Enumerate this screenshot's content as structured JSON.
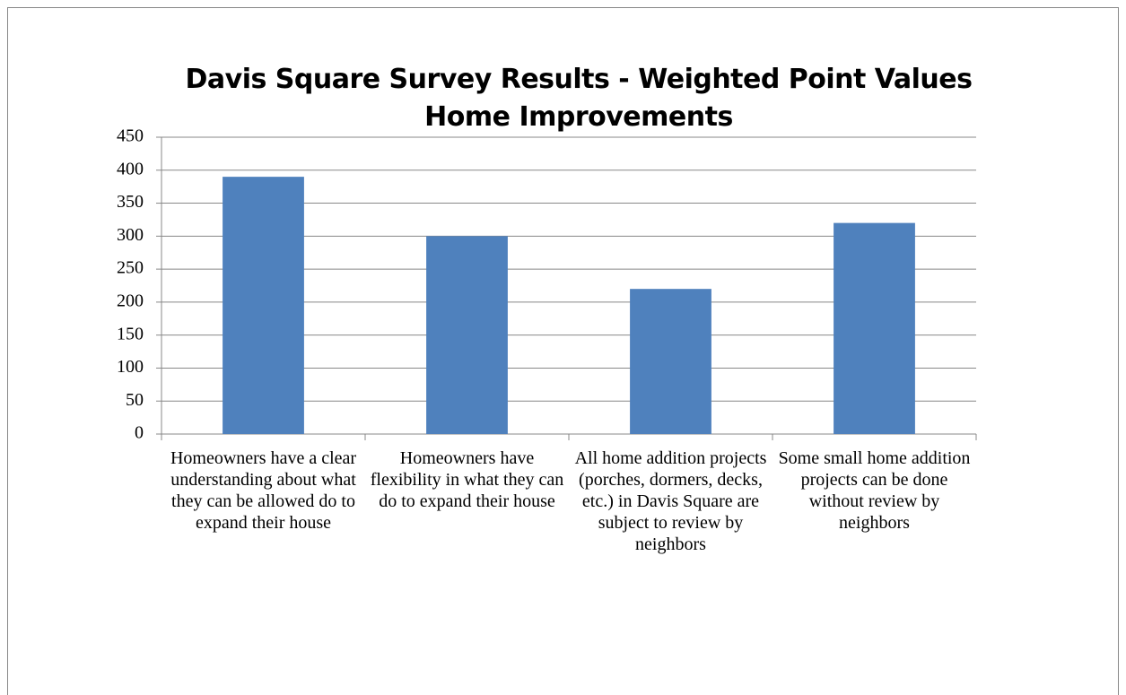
{
  "chart_data": {
    "type": "bar",
    "title": "Davis Square Survey Results - Weighted Point Values",
    "subtitle": "Home Improvements",
    "categories": [
      "Homeowners have a clear understanding about what they can be allowed do to expand their house",
      "Homeowners have flexibility in what they can do to expand their house",
      "All home addition projects (porches, dormers, decks, etc.) in Davis Square are subject to review by neighbors",
      "Some small home addition projects can be done without review by neighbors"
    ],
    "values": [
      390,
      300,
      220,
      320
    ],
    "color": "#4f81bd",
    "ylim": [
      0,
      450
    ],
    "yticks": [
      0,
      50,
      100,
      150,
      200,
      250,
      300,
      350,
      400,
      450
    ],
    "grid": true
  }
}
